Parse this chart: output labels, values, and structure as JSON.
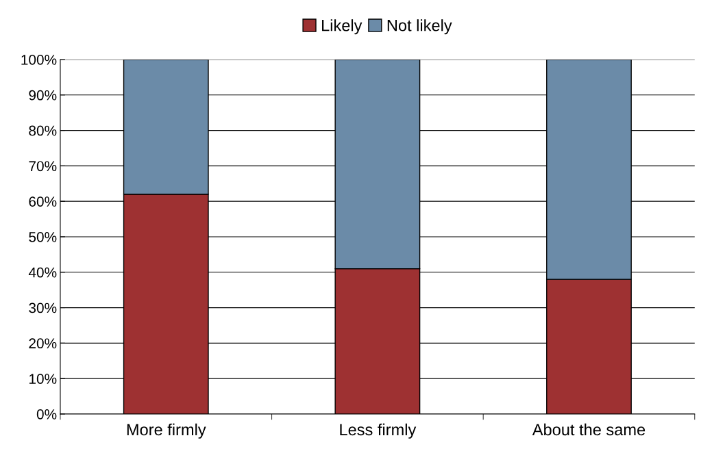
{
  "chart_data": {
    "type": "bar",
    "stacked": true,
    "categories": [
      "More firmly",
      "Less firmly",
      "About the same"
    ],
    "series": [
      {
        "name": "Likely",
        "color": "#9e3132",
        "values": [
          62,
          41,
          38
        ]
      },
      {
        "name": "Not likely",
        "color": "#6b8ba8",
        "values": [
          38,
          59,
          62
        ]
      }
    ],
    "ylim": [
      0,
      100
    ],
    "yticks": [
      {
        "value": 0,
        "label": "0%"
      },
      {
        "value": 10,
        "label": "10%"
      },
      {
        "value": 20,
        "label": "20%"
      },
      {
        "value": 30,
        "label": "30%"
      },
      {
        "value": 40,
        "label": "40%"
      },
      {
        "value": 50,
        "label": "50%"
      },
      {
        "value": 60,
        "label": "60%"
      },
      {
        "value": 70,
        "label": "70%"
      },
      {
        "value": 80,
        "label": "80%"
      },
      {
        "value": 90,
        "label": "90%"
      },
      {
        "value": 100,
        "label": "100%"
      }
    ],
    "grid": "y",
    "legend": "top"
  }
}
